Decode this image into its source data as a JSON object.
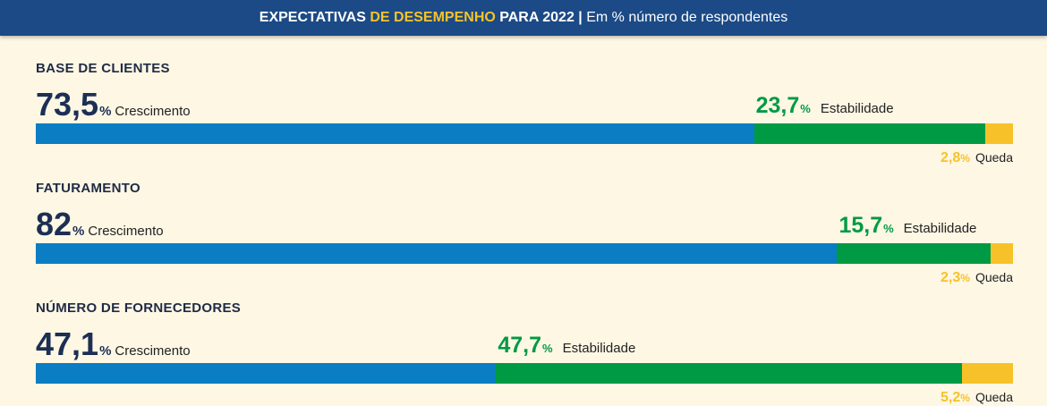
{
  "header": {
    "part1": "EXPECTATIVAS ",
    "highlight": "DE DESEMPENHO",
    "part2": " PARA 2022 | ",
    "subtitle": "Em % número de respondentes"
  },
  "labels": {
    "growth": "Crescimento",
    "stability": "Estabilidade",
    "decline": "Queda",
    "percent": "%"
  },
  "colors": {
    "header_bg": "#1b4a86",
    "highlight": "#f7c229",
    "growth": "#0a7dc3",
    "stability": "#009a44",
    "decline": "#f7c229",
    "growth_text": "#1c2f54",
    "background": "#fdf7e4"
  },
  "chart_data": {
    "type": "bar",
    "stacked": true,
    "orientation": "horizontal",
    "title": "EXPECTATIVAS DE DESEMPENHO PARA 2022 | Em % número de respondentes",
    "categories": [
      "BASE DE CLIENTES",
      "FATURAMENTO",
      "NÚMERO DE FORNECEDORES"
    ],
    "series": [
      {
        "name": "Crescimento",
        "values": [
          73.5,
          82,
          47.1
        ],
        "labels": [
          "73,5",
          "82",
          "47,1"
        ]
      },
      {
        "name": "Estabilidade",
        "values": [
          23.7,
          15.7,
          47.7
        ],
        "labels": [
          "23,7",
          "15,7",
          "47,7"
        ]
      },
      {
        "name": "Queda",
        "values": [
          2.8,
          2.3,
          5.2
        ],
        "labels": [
          "2,8",
          "2,3",
          "5,2"
        ]
      }
    ],
    "xlim": [
      0,
      100
    ]
  }
}
